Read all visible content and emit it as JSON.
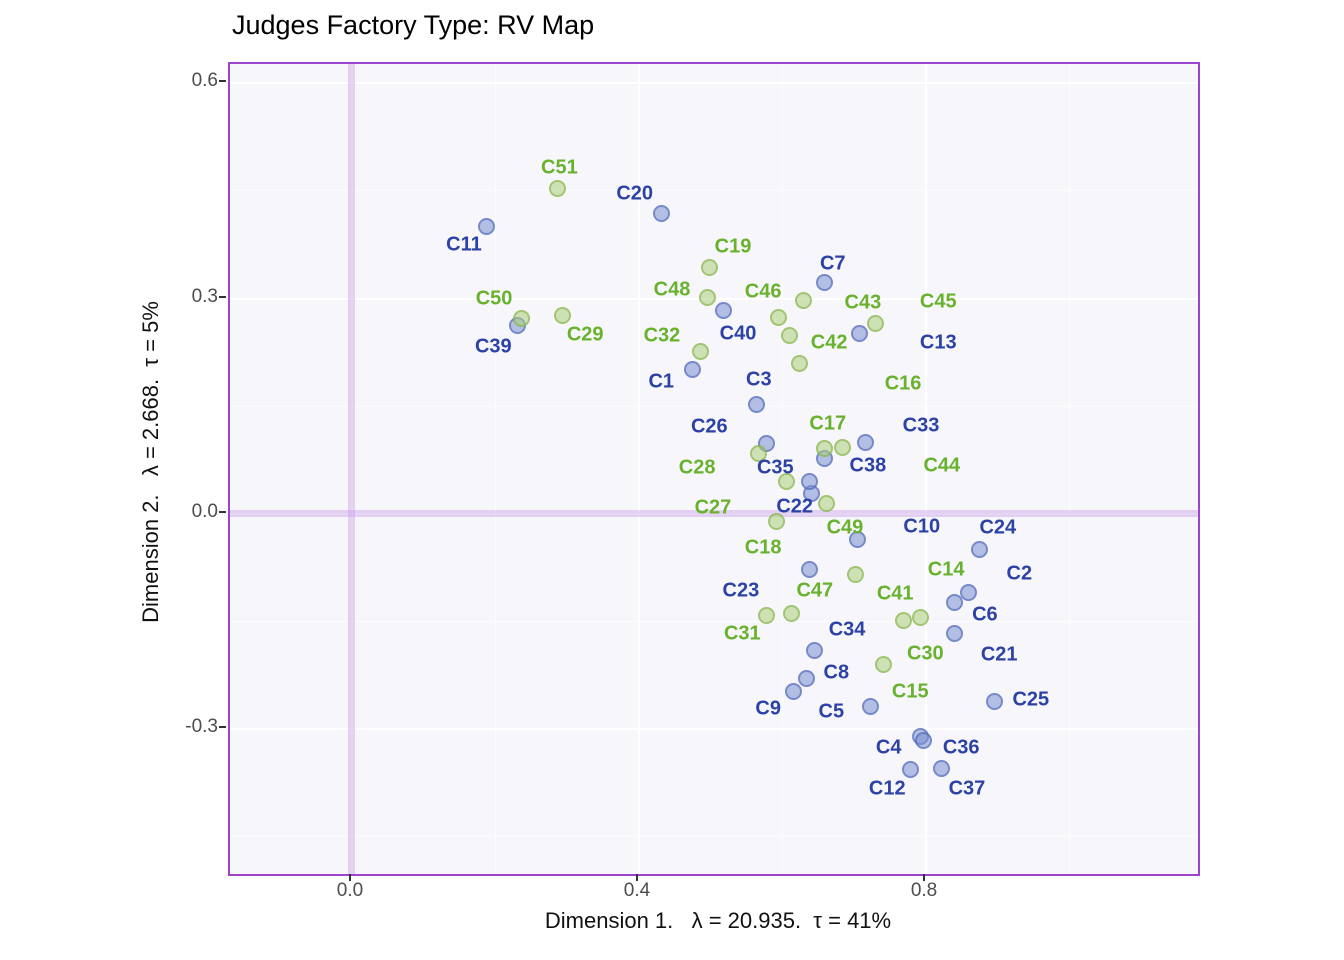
{
  "title": "Judges Factory Type: RV Map",
  "chart_data": {
    "type": "scatter",
    "x_axis": {
      "label": "Dimension 1.   λ = 20.935.  τ = 41%",
      "min": -0.17,
      "max": 1.179,
      "major_ticks": [
        0.0,
        0.4,
        0.8
      ],
      "tick_labels": [
        "0.0",
        "0.4",
        "0.8"
      ],
      "minor_ticks": [
        0.2,
        0.6,
        1.0
      ]
    },
    "y_axis": {
      "label": "Dimension 2.   λ = 2.668.  τ = 5%",
      "min": -0.502,
      "max": 0.627,
      "major_ticks": [
        0.6,
        0.3,
        0.0,
        -0.3
      ],
      "tick_labels": [
        "0.6",
        "0.3",
        "0.0",
        "-0.3"
      ],
      "minor_ticks": [
        0.45,
        0.15,
        -0.15,
        -0.45
      ]
    },
    "reference_lines": {
      "x": 0.0,
      "y": 0.0
    },
    "grid": true,
    "legend": "none",
    "point_groups": [
      "blue",
      "green"
    ],
    "points": [
      {
        "id": "C1",
        "group": "blue",
        "x": 0.474,
        "y": 0.201,
        "label_x": 0.431,
        "label_y": 0.184
      },
      {
        "id": "C2",
        "group": "blue",
        "x": 0.859,
        "y": -0.109,
        "label_x": 0.93,
        "label_y": -0.084
      },
      {
        "id": "C3",
        "group": "blue",
        "x": 0.564,
        "y": 0.152,
        "label_x": 0.567,
        "label_y": 0.187
      },
      {
        "id": "C4",
        "group": "blue",
        "x": 0.792,
        "y": -0.311,
        "label_x": 0.748,
        "label_y": -0.326
      },
      {
        "id": "C5",
        "group": "blue",
        "x": 0.723,
        "y": -0.268,
        "label_x": 0.668,
        "label_y": -0.276
      },
      {
        "id": "C6",
        "group": "blue",
        "x": 0.84,
        "y": -0.124,
        "label_x": 0.882,
        "label_y": -0.141
      },
      {
        "id": "C7",
        "group": "blue",
        "x": 0.659,
        "y": 0.322,
        "label_x": 0.67,
        "label_y": 0.348
      },
      {
        "id": "C8",
        "group": "blue",
        "x": 0.633,
        "y": -0.23,
        "label_x": 0.675,
        "label_y": -0.222
      },
      {
        "id": "C9",
        "group": "blue",
        "x": 0.615,
        "y": -0.247,
        "label_x": 0.58,
        "label_y": -0.272
      },
      {
        "id": "C10",
        "group": "blue",
        "x": 0.705,
        "y": -0.036,
        "label_x": 0.794,
        "label_y": -0.018
      },
      {
        "id": "C11",
        "group": "blue",
        "x": 0.188,
        "y": 0.401,
        "label_x": 0.156,
        "label_y": 0.375
      },
      {
        "id": "C12",
        "group": "blue",
        "x": 0.779,
        "y": -0.357,
        "label_x": 0.746,
        "label_y": -0.383
      },
      {
        "id": "C13",
        "group": "blue",
        "x": 0.707,
        "y": 0.251,
        "label_x": 0.817,
        "label_y": 0.238
      },
      {
        "id": "C14",
        "group": "green",
        "x": 0.792,
        "y": -0.144,
        "label_x": 0.828,
        "label_y": -0.078
      },
      {
        "id": "C15",
        "group": "green",
        "x": 0.613,
        "y": -0.139,
        "label_x": 0.778,
        "label_y": -0.249
      },
      {
        "id": "C16",
        "group": "green",
        "x": 0.623,
        "y": 0.209,
        "label_x": 0.768,
        "label_y": 0.181
      },
      {
        "id": "C17",
        "group": "green",
        "x": 0.683,
        "y": 0.093,
        "label_x": 0.663,
        "label_y": 0.125
      },
      {
        "id": "C18",
        "group": "green",
        "x": 0.606,
        "y": 0.045,
        "label_x": 0.573,
        "label_y": -0.047
      },
      {
        "id": "C19",
        "group": "green",
        "x": 0.498,
        "y": 0.343,
        "label_x": 0.531,
        "label_y": 0.372
      },
      {
        "id": "C20",
        "group": "blue",
        "x": 0.431,
        "y": 0.419,
        "label_x": 0.394,
        "label_y": 0.446
      },
      {
        "id": "C21",
        "group": "blue",
        "x": 0.839,
        "y": -0.167,
        "label_x": 0.902,
        "label_y": -0.197
      },
      {
        "id": "C22",
        "group": "blue",
        "x": 0.64,
        "y": 0.029,
        "label_x": 0.617,
        "label_y": 0.01
      },
      {
        "id": "C23",
        "group": "blue",
        "x": 0.637,
        "y": -0.077,
        "label_x": 0.542,
        "label_y": -0.107
      },
      {
        "id": "C24",
        "group": "blue",
        "x": 0.874,
        "y": -0.05,
        "label_x": 0.9,
        "label_y": -0.02
      },
      {
        "id": "C25",
        "group": "blue",
        "x": 0.895,
        "y": -0.261,
        "label_x": 0.946,
        "label_y": -0.259
      },
      {
        "id": "C26",
        "group": "blue",
        "x": 0.578,
        "y": 0.098,
        "label_x": 0.498,
        "label_y": 0.121
      },
      {
        "id": "C27",
        "group": "green",
        "x": 0.592,
        "y": -0.011,
        "label_x": 0.503,
        "label_y": 0.008
      },
      {
        "id": "C28",
        "group": "green",
        "x": 0.567,
        "y": 0.084,
        "label_x": 0.481,
        "label_y": 0.064
      },
      {
        "id": "C29",
        "group": "green",
        "x": 0.293,
        "y": 0.277,
        "label_x": 0.325,
        "label_y": 0.249
      },
      {
        "id": "C30",
        "group": "green",
        "x": 0.741,
        "y": -0.21,
        "label_x": 0.799,
        "label_y": -0.195
      },
      {
        "id": "C31",
        "group": "green",
        "x": 0.577,
        "y": -0.141,
        "label_x": 0.544,
        "label_y": -0.167
      },
      {
        "id": "C32",
        "group": "green",
        "x": 0.485,
        "y": 0.226,
        "label_x": 0.432,
        "label_y": 0.248
      },
      {
        "id": "C33",
        "group": "blue",
        "x": 0.716,
        "y": 0.099,
        "label_x": 0.793,
        "label_y": 0.123
      },
      {
        "id": "C34",
        "group": "blue",
        "x": 0.645,
        "y": -0.19,
        "label_x": 0.69,
        "label_y": -0.162
      },
      {
        "id": "C35",
        "group": "blue",
        "x": 0.637,
        "y": 0.045,
        "label_x": 0.59,
        "label_y": 0.064
      },
      {
        "id": "C36",
        "group": "blue",
        "x": 0.797,
        "y": -0.316,
        "label_x": 0.849,
        "label_y": -0.326
      },
      {
        "id": "C37",
        "group": "blue",
        "x": 0.822,
        "y": -0.355,
        "label_x": 0.857,
        "label_y": -0.383
      },
      {
        "id": "C38",
        "group": "blue",
        "x": 0.659,
        "y": 0.077,
        "label_x": 0.719,
        "label_y": 0.067
      },
      {
        "id": "C39",
        "group": "blue",
        "x": 0.23,
        "y": 0.262,
        "label_x": 0.197,
        "label_y": 0.233
      },
      {
        "id": "C40",
        "group": "blue",
        "x": 0.518,
        "y": 0.283,
        "label_x": 0.538,
        "label_y": 0.251
      },
      {
        "id": "C41",
        "group": "green",
        "x": 0.768,
        "y": -0.149,
        "label_x": 0.757,
        "label_y": -0.112
      },
      {
        "id": "C42",
        "group": "green",
        "x": 0.61,
        "y": 0.249,
        "label_x": 0.665,
        "label_y": 0.238
      },
      {
        "id": "C43",
        "group": "green",
        "x": 0.729,
        "y": 0.265,
        "label_x": 0.712,
        "label_y": 0.294
      },
      {
        "id": "C44",
        "group": "green",
        "x": 0.658,
        "y": 0.091,
        "label_x": 0.822,
        "label_y": 0.067
      },
      {
        "id": "C45",
        "group": "green",
        "x": 0.629,
        "y": 0.298,
        "label_x": 0.817,
        "label_y": 0.295
      },
      {
        "id": "C46",
        "group": "green",
        "x": 0.594,
        "y": 0.273,
        "label_x": 0.573,
        "label_y": 0.309
      },
      {
        "id": "C47",
        "group": "green",
        "x": 0.701,
        "y": -0.085,
        "label_x": 0.645,
        "label_y": -0.107
      },
      {
        "id": "C48",
        "group": "green",
        "x": 0.496,
        "y": 0.302,
        "label_x": 0.446,
        "label_y": 0.312
      },
      {
        "id": "C49",
        "group": "green",
        "x": 0.661,
        "y": 0.014,
        "label_x": 0.687,
        "label_y": -0.02
      },
      {
        "id": "C50",
        "group": "green",
        "x": 0.236,
        "y": 0.272,
        "label_x": 0.198,
        "label_y": 0.3
      },
      {
        "id": "C51",
        "group": "green",
        "x": 0.287,
        "y": 0.453,
        "label_x": 0.289,
        "label_y": 0.482
      }
    ]
  },
  "colors": {
    "blue_label": "#2c42a5",
    "green_label": "#68b22e",
    "blue_point_fill": "#b2bee3",
    "green_point_fill": "#cde1b5",
    "panel_background": "#f7f6fb",
    "panel_border": "#9d44cf",
    "reference_line": "#e1cff1",
    "gridline": "#ffffff",
    "title_color": "#000000",
    "tick_label_color": "#4d4d4d"
  }
}
